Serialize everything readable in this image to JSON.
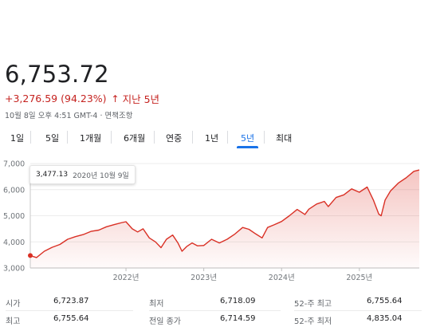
{
  "quote": {
    "price": "6,753.72",
    "change": "+3,276.59 (94.23%)",
    "arrow": "↑",
    "period": "지난 5년",
    "meta": "10월 8일 오후 4:51 GMT-4 · 면책조항"
  },
  "tabs": [
    {
      "label": "1일",
      "active": false
    },
    {
      "label": "5일",
      "active": false
    },
    {
      "label": "1개월",
      "active": false
    },
    {
      "label": "6개월",
      "active": false
    },
    {
      "label": "연중",
      "active": false
    },
    {
      "label": "1년",
      "active": false
    },
    {
      "label": "5년",
      "active": true
    },
    {
      "label": "최대",
      "active": false
    }
  ],
  "tooltip": {
    "value": "3,477.13",
    "date": "2020년 10월 9일"
  },
  "chart_data": {
    "type": "area",
    "y_ticks": [
      "7,000",
      "6,000",
      "5,000",
      "4,000",
      "3,000"
    ],
    "x_ticks": [
      "2022년",
      "2023년",
      "2024년",
      "2025년"
    ],
    "ylim": [
      3000,
      7000
    ],
    "x_unit": "year",
    "xlim": [
      2020.77,
      2025.77
    ],
    "color": "#d93025",
    "series": [
      {
        "x": [
          2020.77,
          2020.85,
          2020.95,
          2021.05,
          2021.15,
          2021.25,
          2021.35,
          2021.45,
          2021.55,
          2021.65,
          2021.75,
          2021.85,
          2021.95,
          2022.0,
          2022.08,
          2022.15,
          2022.22,
          2022.3,
          2022.38,
          2022.45,
          2022.52,
          2022.6,
          2022.67,
          2022.72,
          2022.78,
          2022.85,
          2022.92,
          2023.0,
          2023.1,
          2023.2,
          2023.3,
          2023.4,
          2023.5,
          2023.58,
          2023.67,
          2023.75,
          2023.82,
          2023.9,
          2024.0,
          2024.1,
          2024.2,
          2024.3,
          2024.35,
          2024.45,
          2024.55,
          2024.6,
          2024.7,
          2024.8,
          2024.9,
          2025.0,
          2025.1,
          2025.18,
          2025.25,
          2025.28,
          2025.33,
          2025.4,
          2025.5,
          2025.6,
          2025.7,
          2025.77
        ],
        "y": [
          3477.13,
          3400,
          3640,
          3790,
          3900,
          4100,
          4200,
          4280,
          4400,
          4450,
          4580,
          4660,
          4740,
          4770,
          4500,
          4380,
          4500,
          4150,
          4000,
          3780,
          4100,
          4260,
          3950,
          3640,
          3820,
          3960,
          3850,
          3860,
          4100,
          3960,
          4100,
          4300,
          4550,
          4480,
          4300,
          4150,
          4550,
          4650,
          4780,
          5000,
          5240,
          5050,
          5250,
          5450,
          5550,
          5350,
          5700,
          5800,
          6030,
          5900,
          6100,
          5600,
          5060,
          5000,
          5600,
          5950,
          6250,
          6450,
          6700,
          6753.72
        ]
      }
    ]
  },
  "stats": [
    {
      "l1": "시가",
      "v1": "6,723.87",
      "l2": "최저",
      "v2": "6,718.09",
      "l3": "52-주 최고",
      "v3": "6,755.64"
    },
    {
      "l1": "최고",
      "v1": "6,755.64",
      "l2": "전일 종가",
      "v2": "6,714.59",
      "l3": "52-주 최저",
      "v3": "4,835.04"
    }
  ]
}
